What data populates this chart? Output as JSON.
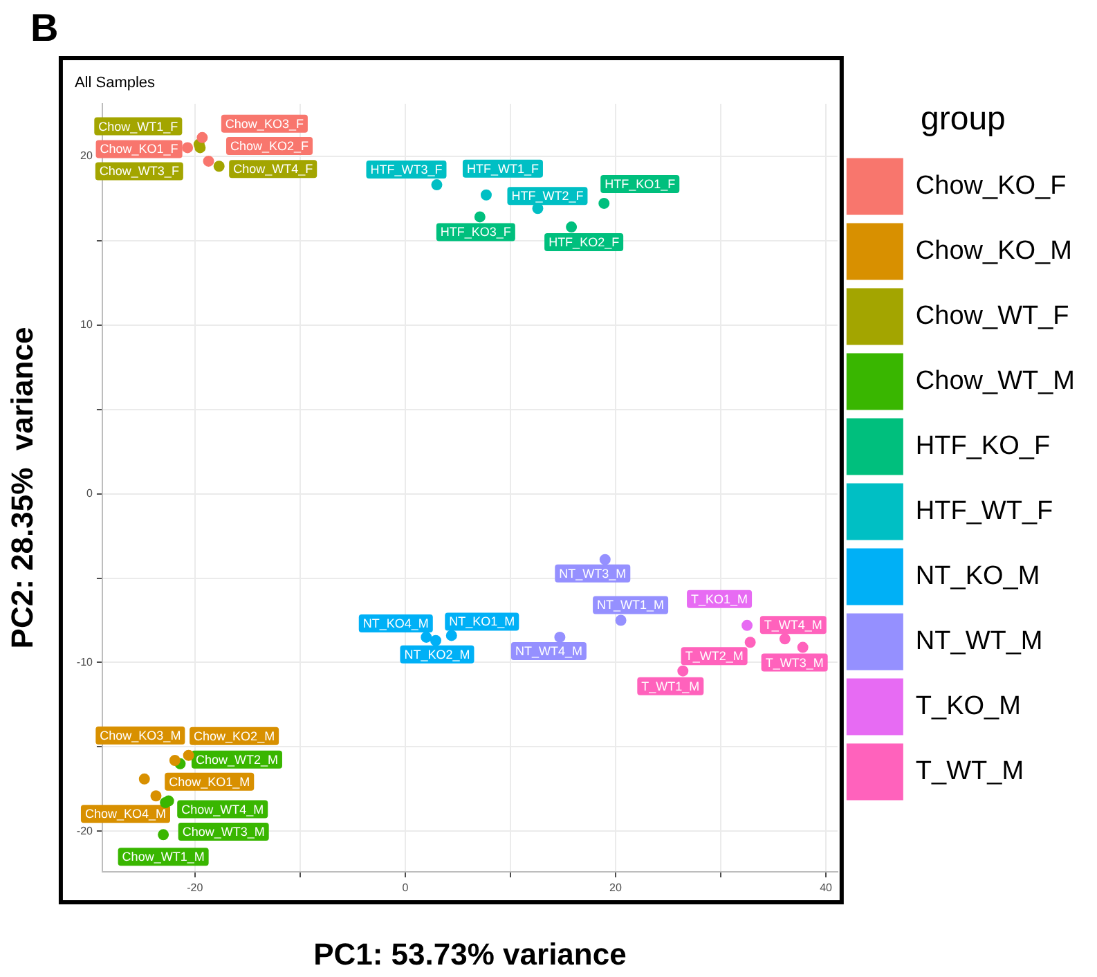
{
  "chart_data": {
    "type": "scatter",
    "title": "All Samples",
    "xlabel": "PC1: 53.73% variance",
    "ylabel": "PC2: 28.35%  variance",
    "legend_title": "group",
    "annotations": [
      "B"
    ],
    "legend": "right",
    "grid": true,
    "marker": "circle",
    "xlim": [
      -28.8,
      41.1
    ],
    "ylim": [
      -22.4,
      23.1
    ],
    "xticks": [
      -20,
      {
        "value": -10,
        "label": null
      },
      0,
      {
        "value": 10,
        "label": null
      },
      20,
      {
        "value": 30,
        "label": null
      },
      40
    ],
    "yticks": [
      -20,
      {
        "value": -15,
        "label": null
      },
      -10,
      {
        "value": -5,
        "label": null
      },
      0,
      {
        "value": 5,
        "label": null
      },
      10,
      {
        "value": 15,
        "label": null
      },
      20
    ],
    "series": [
      {
        "name": "Chow_KO_F",
        "color": "#f8766d",
        "x": [
          -20.7,
          -18.7,
          -19.3
        ],
        "values": [
          20.5,
          19.7,
          21.1
        ],
        "value_labels": [
          "Chow_KO1_F",
          "Chow_KO2_F",
          "Chow_KO3_F"
        ]
      },
      {
        "name": "Chow_KO_M",
        "color": "#d89000",
        "x": [
          -24.8,
          -20.6,
          -21.9,
          -23.7
        ],
        "values": [
          -16.9,
          -15.5,
          -15.8,
          -17.9
        ],
        "value_labels": [
          "Chow_KO1_M",
          "Chow_KO2_M",
          "Chow_KO3_M",
          "Chow_KO4_M"
        ]
      },
      {
        "name": "Chow_WT_F",
        "color": "#a3a500",
        "x": [
          -19.6,
          -19.5,
          -17.7
        ],
        "values": [
          20.7,
          20.5,
          19.4
        ],
        "value_labels": [
          "Chow_WT1_F",
          "Chow_WT3_F",
          "Chow_WT4_F"
        ]
      },
      {
        "name": "Chow_WT_M",
        "color": "#39b600",
        "x": [
          -23.0,
          -21.4,
          -22.8,
          -22.5
        ],
        "values": [
          -20.2,
          -16.0,
          -18.3,
          -18.2
        ],
        "value_labels": [
          "Chow_WT1_M",
          "Chow_WT2_M",
          "Chow_WT3_M",
          "Chow_WT4_M"
        ]
      },
      {
        "name": "HTF_KO_F",
        "color": "#00bf7d",
        "x": [
          18.9,
          15.8,
          7.1
        ],
        "values": [
          17.2,
          15.8,
          16.4
        ],
        "value_labels": [
          "HTF_KO1_F",
          "HTF_KO2_F",
          "HTF_KO3_F"
        ]
      },
      {
        "name": "HTF_WT_F",
        "color": "#00bfc4",
        "x": [
          7.7,
          12.6,
          3.0
        ],
        "values": [
          17.7,
          16.9,
          18.3
        ],
        "value_labels": [
          "HTF_WT1_F",
          "HTF_WT2_F",
          "HTF_WT3_F"
        ]
      },
      {
        "name": "NT_KO_M",
        "color": "#00b0f6",
        "x": [
          4.4,
          2.9,
          2.0
        ],
        "values": [
          -8.4,
          -8.7,
          -8.5
        ],
        "value_labels": [
          "NT_KO1_M",
          "NT_KO2_M",
          "NT_KO4_M"
        ]
      },
      {
        "name": "NT_WT_M",
        "color": "#9590ff",
        "x": [
          20.5,
          19.0,
          14.7
        ],
        "values": [
          -7.5,
          -3.9,
          -8.5
        ],
        "value_labels": [
          "NT_WT1_M",
          "NT_WT3_M",
          "NT_WT4_M"
        ]
      },
      {
        "name": "T_KO_M",
        "color": "#e76bf3",
        "x": [
          32.5
        ],
        "values": [
          -7.8
        ],
        "value_labels": [
          "T_KO1_M"
        ]
      },
      {
        "name": "T_WT_M",
        "color": "#ff62bc",
        "x": [
          26.4,
          32.8,
          37.8,
          36.1
        ],
        "values": [
          -10.5,
          -8.8,
          -9.1,
          -8.6
        ],
        "value_labels": [
          "T_WT1_M",
          "T_WT2_M",
          "T_WT3_M",
          "T_WT4_M"
        ]
      }
    ]
  }
}
